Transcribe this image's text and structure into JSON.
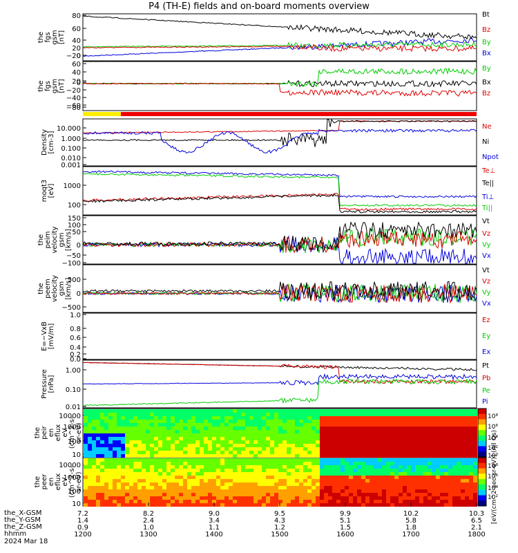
{
  "title": "P4 (TH-E) fields and on-board moments overview",
  "date_label": "2024 Mar 18",
  "ephemeris_labels": [
    "the_X-GSM",
    "the_Y-GSM",
    "the_Z-GSM",
    "hhmm"
  ],
  "ephemeris_rows": {
    "x": [
      "7.2",
      "8.2",
      "9.0",
      "9.5",
      "9.9",
      "10.2",
      "10.3"
    ],
    "y": [
      "1.4",
      "2.4",
      "3.4",
      "4.3",
      "5.1",
      "5.8",
      "6.5"
    ],
    "z": [
      "0.9",
      "1.0",
      "1.1",
      "1.2",
      "1.5",
      "1.8",
      "2.1"
    ],
    "hhmm": [
      "1200",
      "1300",
      "1400",
      "1500",
      "1600",
      "1700",
      "1800"
    ]
  },
  "colorbar_label": "[eV/(cm^2-sec-sr-eV)] (All Qs)",
  "colorbar_ticks": [
    "10⁸",
    "10⁶",
    "10⁴",
    "10²",
    "10⁰",
    "10⁸",
    "10⁶",
    "10⁴",
    "10²"
  ],
  "chart_data": [
    {
      "type": "line",
      "ylabel": "the\nfgs\ngsm\n[nT]",
      "ylim": [
        -30,
        90
      ],
      "yticks": [
        "80",
        "60",
        "40",
        "20",
        "0",
        "−20"
      ],
      "series": [
        {
          "name": "Bt",
          "color": "#000000"
        },
        {
          "name": "Bz",
          "color": "#dd0000"
        },
        {
          "name": "By",
          "color": "#00cc00"
        },
        {
          "name": "Bx",
          "color": "#0000dd"
        }
      ]
    },
    {
      "type": "line",
      "ylabel": "the\nfgs\ngsm\n[nT]",
      "ylim": [
        -90,
        65
      ],
      "yticks": [
        "60",
        "40",
        "20",
        "0",
        "−20",
        "−40",
        "−60",
        "−80"
      ],
      "series": [
        {
          "name": "By",
          "color": "#00cc00"
        },
        {
          "name": "Bx",
          "color": "#000000"
        },
        {
          "name": "Bz",
          "color": "#dd0000"
        }
      ]
    },
    {
      "type": "line",
      "ylabel": "Density\n[cm-3]",
      "scale": "log",
      "yticks": [
        "10.000",
        "1.000",
        "0.100",
        "0.010",
        "0.001"
      ],
      "series": [
        {
          "name": "Ne",
          "color": "#dd0000"
        },
        {
          "name": "Ni",
          "color": "#000000"
        },
        {
          "name": "Npot",
          "color": "#0000dd"
        }
      ]
    },
    {
      "type": "line",
      "ylabel": "moqt3\n[eV]",
      "scale": "log",
      "yticks": [
        "1000",
        "100"
      ],
      "series": [
        {
          "name": "Te⊥",
          "color": "#dd0000"
        },
        {
          "name": "Te||",
          "color": "#000000"
        },
        {
          "name": "Ti⊥",
          "color": "#0000dd"
        },
        {
          "name": "Ti||",
          "color": "#00cc00"
        }
      ]
    },
    {
      "type": "line",
      "ylabel": "the\npeim\nvelocity\ngsm\n[km/s]",
      "ylim": [
        -125,
        155
      ],
      "yticks": [
        "150",
        "100",
        "50",
        "0",
        "−50",
        "−100"
      ],
      "series": [
        {
          "name": "Vt",
          "color": "#000000"
        },
        {
          "name": "Vz",
          "color": "#dd0000"
        },
        {
          "name": "Vy",
          "color": "#00cc00"
        },
        {
          "name": "Vx",
          "color": "#0000dd"
        }
      ]
    },
    {
      "type": "line",
      "ylabel": "the\npeem\nvelocity\ngsm\n[km/s]",
      "ylim": [
        -700,
        900
      ],
      "yticks": [
        "500",
        "0",
        "−500"
      ],
      "series": [
        {
          "name": "Vt",
          "color": "#000000"
        },
        {
          "name": "Vz",
          "color": "#dd0000"
        },
        {
          "name": "Vy",
          "color": "#00cc00"
        },
        {
          "name": "Vx",
          "color": "#0000dd"
        }
      ]
    },
    {
      "type": "line",
      "ylabel": "E=−VxB\n[mV/m]",
      "ylim": [
        0,
        1
      ],
      "yticks": [
        "1.0",
        "0.8",
        "0.6",
        "0.4",
        "0.2",
        "0.0"
      ],
      "series": [
        {
          "name": "Ez",
          "color": "#dd0000"
        },
        {
          "name": "Ey",
          "color": "#00cc00"
        },
        {
          "name": "Ex",
          "color": "#0000dd"
        }
      ]
    },
    {
      "type": "line",
      "ylabel": "Pressure\n[nPa]",
      "scale": "log",
      "yticks": [
        "1.00",
        "0.10",
        "0.01"
      ],
      "series": [
        {
          "name": "Pt",
          "color": "#000000"
        },
        {
          "name": "Pb",
          "color": "#dd0000"
        },
        {
          "name": "Pe",
          "color": "#00cc00"
        },
        {
          "name": "Pi",
          "color": "#0000dd"
        }
      ]
    },
    {
      "type": "heatmap",
      "ylabel": "the\npeir\nen\neflux\neV\n(cm^2-s-\nsr-eV)",
      "scale": "log",
      "yticks": [
        "10000",
        "1000",
        "100",
        "10"
      ]
    },
    {
      "type": "heatmap",
      "ylabel": "the\npeer\nen\neflux\neV\n(cm^2-s-\nsr-eV)",
      "scale": "log",
      "yticks": [
        "10000",
        "1000",
        "100",
        "10"
      ]
    }
  ]
}
